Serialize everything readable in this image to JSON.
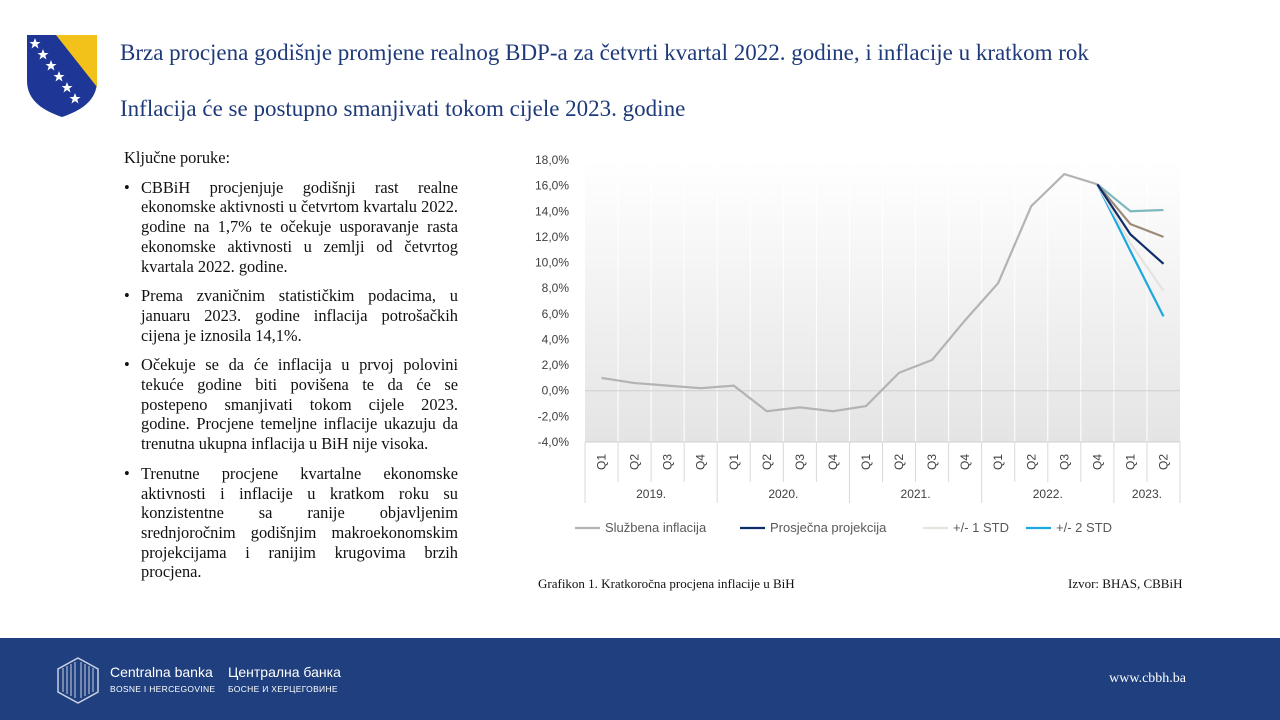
{
  "header": {
    "title": "Brza procjena godišnje promjene realnog BDP-a za četvrti kvartal 2022. godine, i inflacije u kratkom rok",
    "subtitle": "Inflacija će se postupno smanjivati tokom cijele 2023. godine"
  },
  "messages": {
    "heading": "Ključne poruke:",
    "items": [
      "CBBiH procjenjuje godišnji rast realne ekonomske aktivnosti u četvrtom kvartalu 2022. godine na 1,7% te očekuje usporavanje rasta ekonomske aktivnosti u zemlji od četvrtog kvartala 2022. godine.",
      "Prema zvaničnim statističkim podacima, u januaru 2023. godine inflacija potrošačkih cijena je iznosila 14,1%.",
      "Očekuje se da će inflacija u prvoj polovini tekuće godine biti povišena te da će se postepeno smanjivati tokom cijele 2023. godine. Procjene temeljne inflacije ukazuju da trenutna ukupna inflacija u BiH nije visoka.",
      "Trenutne procjene kvartalne ekonomske aktivnosti i inflacije u kratkom roku su konzistentne sa ranije objavljenim srednjoročnim godišnjim makroekonomskim projekcijama i ranijim krugovima brzih procjena."
    ]
  },
  "chart_data": {
    "type": "line",
    "x_quarters": [
      "Q1",
      "Q2",
      "Q3",
      "Q4",
      "Q1",
      "Q2",
      "Q3",
      "Q4",
      "Q1",
      "Q2",
      "Q3",
      "Q4",
      "Q1",
      "Q2",
      "Q3",
      "Q4",
      "Q1",
      "Q2"
    ],
    "x_years": [
      {
        "label": "2019.",
        "quarters": 4
      },
      {
        "label": "2020.",
        "quarters": 4
      },
      {
        "label": "2021.",
        "quarters": 4
      },
      {
        "label": "2022.",
        "quarters": 4
      },
      {
        "label": "2023.",
        "quarters": 2
      }
    ],
    "y_ticks": [
      "18,0%",
      "16,0%",
      "14,0%",
      "12,0%",
      "10,0%",
      "8,0%",
      "6,0%",
      "4,0%",
      "2,0%",
      "0,0%",
      "-2,0%",
      "-4,0%"
    ],
    "ylim": [
      -4,
      18
    ],
    "official": [
      1.0,
      0.6,
      0.4,
      0.2,
      0.4,
      -1.6,
      -1.3,
      -1.6,
      -1.2,
      1.4,
      2.4,
      5.5,
      8.4,
      14.4,
      16.9,
      16.1
    ],
    "projection_start": {
      "index": 15,
      "value": 16.1
    },
    "fan": {
      "plus_2std": [
        14.0,
        14.1
      ],
      "plus_1std": [
        13.0,
        12.0
      ],
      "central": [
        12.2,
        9.9
      ],
      "minus_1std": [
        11.5,
        7.8
      ],
      "minus_2std": [
        10.9,
        5.8
      ]
    },
    "legend": [
      {
        "name": "Službena inflacija",
        "color": "#b3b3b3"
      },
      {
        "name": "Prosječna projekcija",
        "color": "#0f2d6b"
      },
      {
        "name": "+/- 1 STD",
        "color": "#e6e2de"
      },
      {
        "name": "+/- 2 STD",
        "color": "#1ba7e0"
      }
    ],
    "band_colors": {
      "plus_1std": "#9c8a78",
      "plus_2std": "#7fb9bf"
    },
    "caption": "Grafikon 1. Kratkoročna procjena inflacije u BiH",
    "source": "Izvor: BHAS, CBBiH"
  },
  "footer": {
    "bank_name_latin": "Centralna banka",
    "bank_sub_latin": "BOSNE I HERCEGOVINE",
    "bank_name_cyrillic": "Централна банка",
    "bank_sub_cyrillic": "БОСНЕ И ХЕРЦЕГОВИНЕ",
    "website": "www.cbbh.ba"
  }
}
